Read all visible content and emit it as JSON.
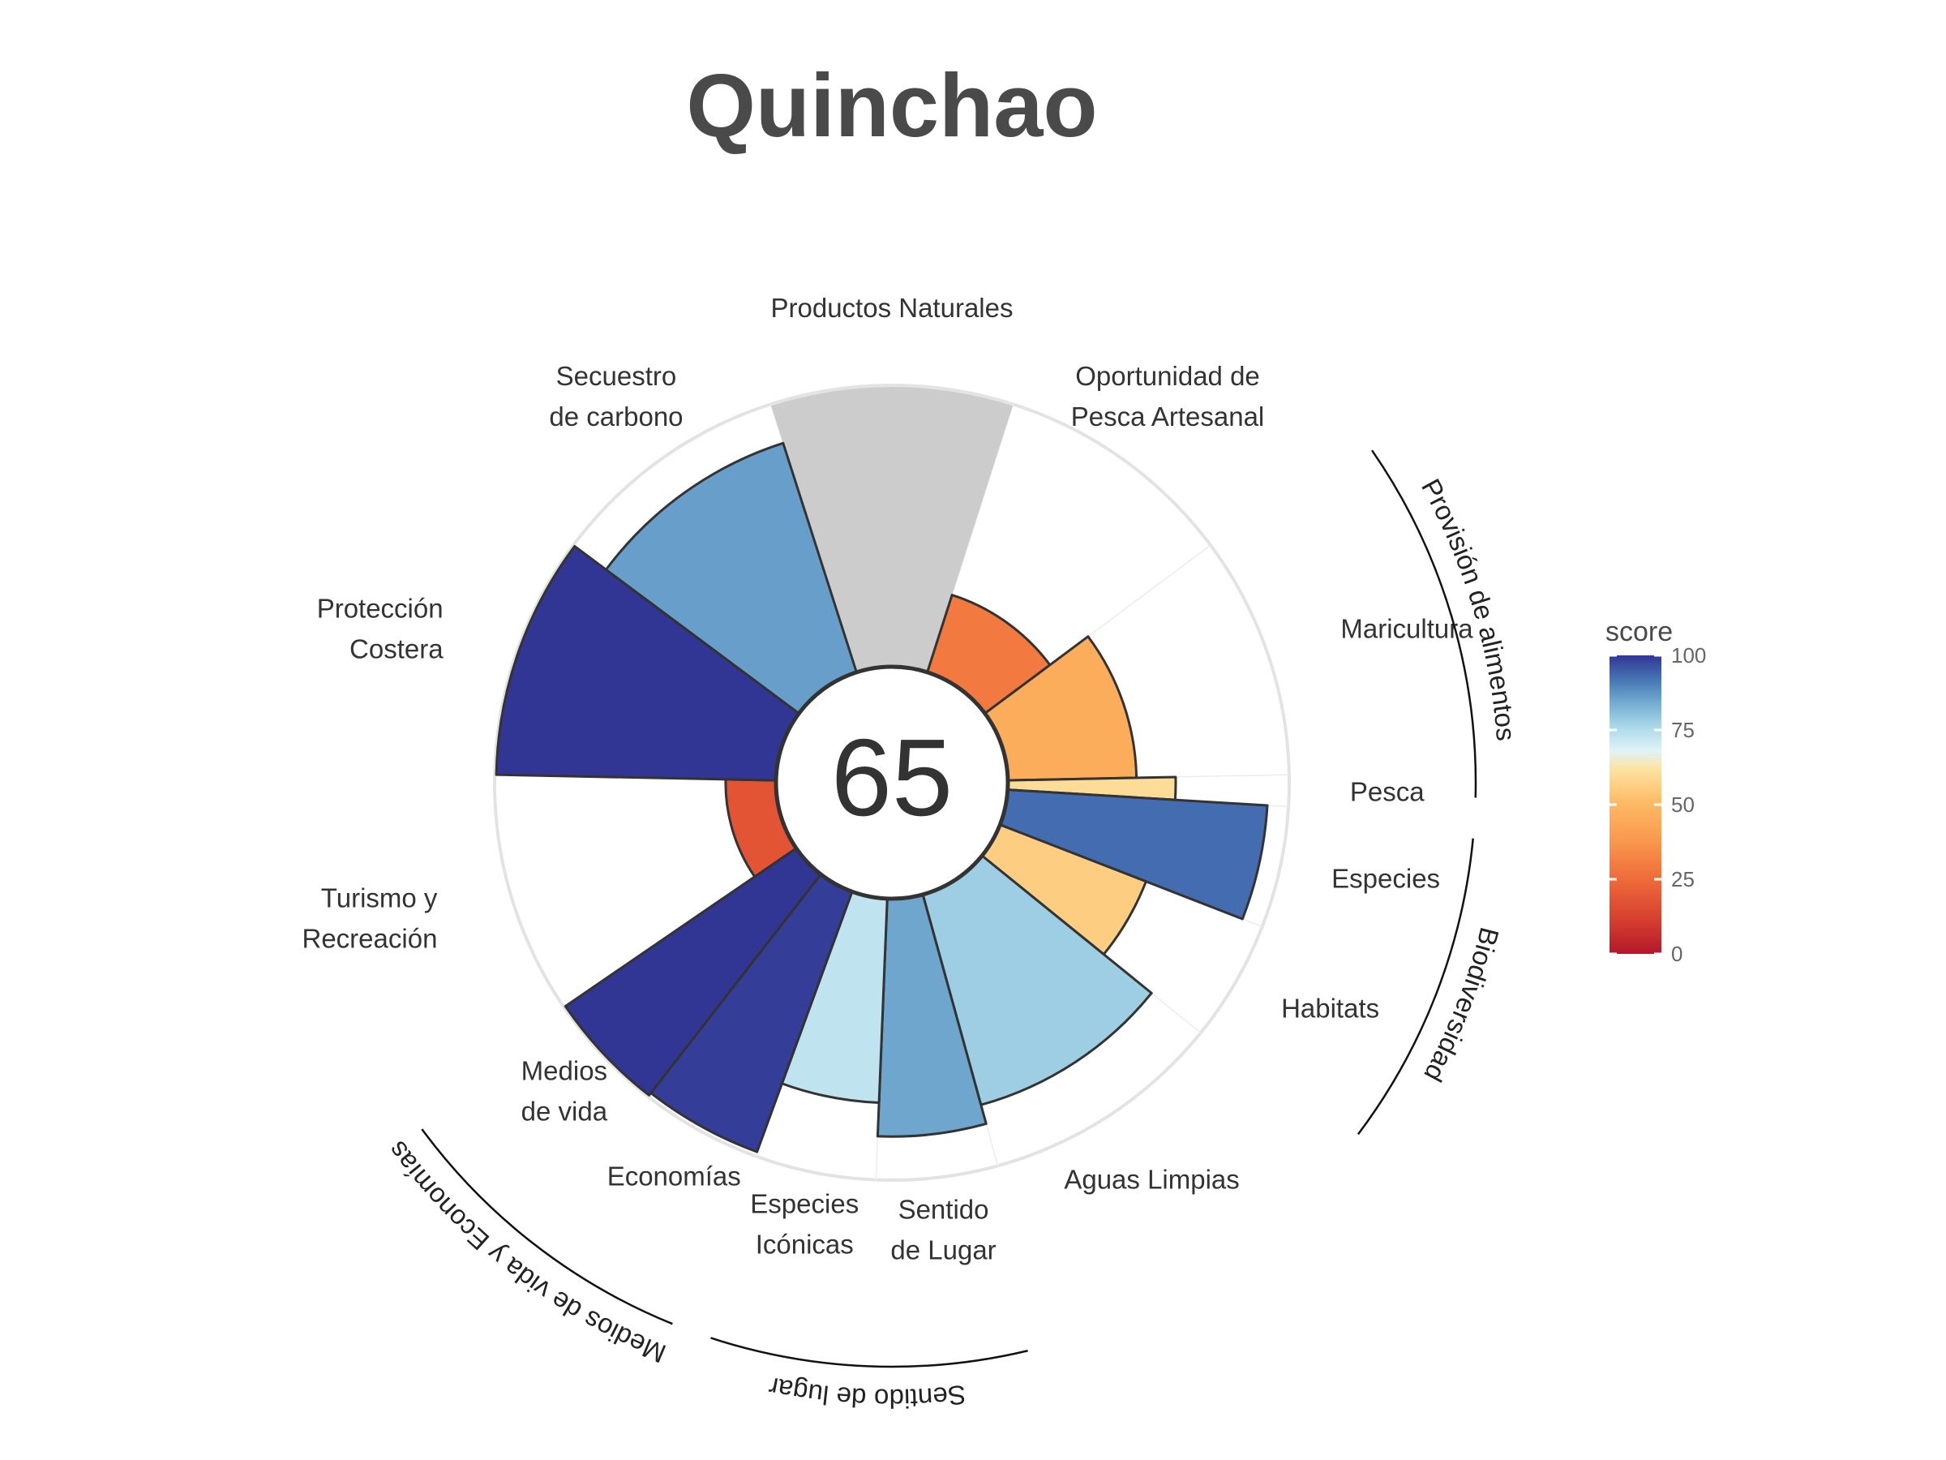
{
  "chart_data": {
    "type": "polar-bar",
    "title": "Quinchao",
    "overall_score": "65",
    "ylim": [
      0,
      100
    ],
    "grid": true,
    "legend": {
      "title": "score",
      "position": "right",
      "ticks": [
        "100",
        "75",
        "50",
        "25",
        "0"
      ]
    },
    "color_scale": {
      "stops": [
        {
          "value": 0,
          "color": "#b2182b"
        },
        {
          "value": 12,
          "color": "#d6412f"
        },
        {
          "value": 25,
          "color": "#ef6b3a"
        },
        {
          "value": 38,
          "color": "#f9984f"
        },
        {
          "value": 50,
          "color": "#fdb863"
        },
        {
          "value": 62,
          "color": "#fde3a1"
        },
        {
          "value": 68,
          "color": "#e0f3f8"
        },
        {
          "value": 76,
          "color": "#abd9e9"
        },
        {
          "value": 84,
          "color": "#74add1"
        },
        {
          "value": 92,
          "color": "#4575b4"
        },
        {
          "value": 100,
          "color": "#313695"
        }
      ],
      "na_color": "#cccccc"
    },
    "categories": [
      {
        "label": [
          "Productos Naturales"
        ],
        "score": null,
        "weight": 1
      },
      {
        "label": [
          "Oportunidad de",
          "Pesca Artesanal"
        ],
        "score": 29,
        "weight": 1
      },
      {
        "label": [
          "Maricultura"
        ],
        "score": 46,
        "weight": 1
      },
      {
        "label": [
          "Pesca"
        ],
        "score": 60,
        "weight": 0.13
      },
      {
        "label": [
          "Especies"
        ],
        "score": 93,
        "weight": 0.5
      },
      {
        "label": [
          "Habitats"
        ],
        "score": 56,
        "weight": 0.5
      },
      {
        "label": [
          "Aguas Limpias"
        ],
        "score": 78,
        "weight": 1
      },
      {
        "label": [
          "Sentido",
          "de Lugar"
        ],
        "score": 85,
        "weight": 0.5
      },
      {
        "label": [
          "Especies",
          "Icónicas"
        ],
        "score": 73,
        "weight": 0.5
      },
      {
        "label": [
          "Economías"
        ],
        "score": 99,
        "weight": 0.5
      },
      {
        "label": [
          "Medios",
          "de vida"
        ],
        "score": 100,
        "weight": 0.5
      },
      {
        "label": [
          "Turismo y",
          "Recreación"
        ],
        "score": 18,
        "weight": 1
      },
      {
        "label": [
          "Protección",
          "Costera"
        ],
        "score": 100,
        "weight": 1
      },
      {
        "label": [
          "Secuestro",
          "de carbono"
        ],
        "score": 86,
        "weight": 1
      }
    ],
    "groups": [
      {
        "label": "Provisión de alimentos",
        "from": 2,
        "to": 3
      },
      {
        "label": "Biodiversidad",
        "from": 4,
        "to": 5
      },
      {
        "label": "Sentido de lugar",
        "from": 7,
        "to": 8
      },
      {
        "label": "Medios de vida y Economías",
        "from": 9,
        "to": 10
      }
    ]
  }
}
